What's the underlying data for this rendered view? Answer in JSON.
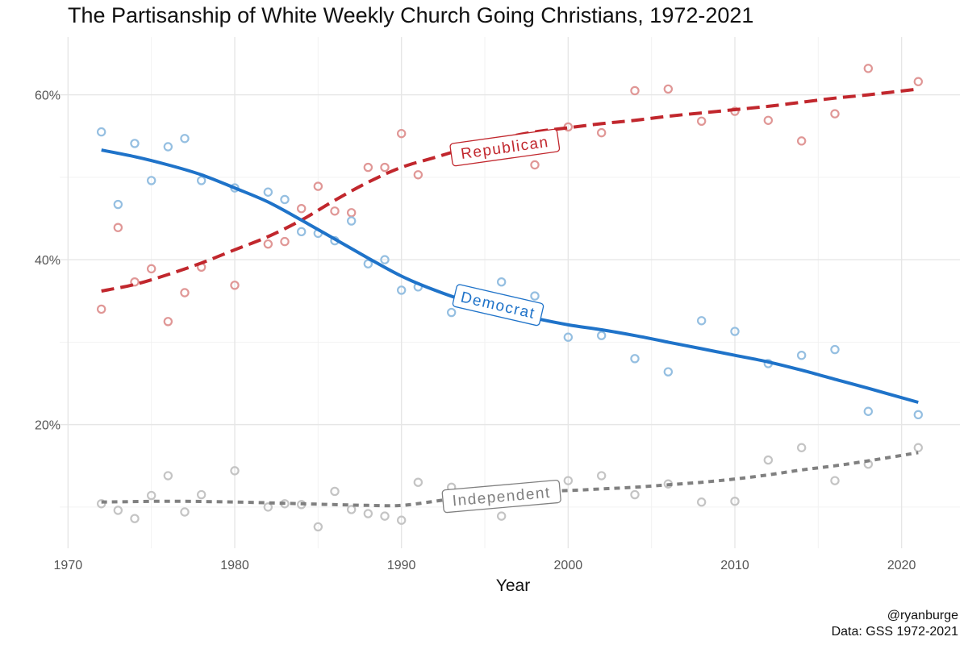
{
  "title": "The Partisanship of White Weekly Church Going Christians, 1972-2021",
  "caption": {
    "line1": "@ryanburge",
    "line2": "Data: GSS 1972-2021"
  },
  "chart_data": {
    "type": "scatter",
    "title": "The Partisanship of White Weekly Church Going Christians, 1972-2021",
    "xlabel": "Year",
    "ylabel": "",
    "xlim": [
      1969.5,
      2023.5
    ],
    "ylim": [
      5,
      67
    ],
    "x_ticks": [
      1970,
      1980,
      1990,
      2000,
      2010,
      2020
    ],
    "y_ticks": [
      20,
      40,
      60
    ],
    "y_tick_labels": [
      "20%",
      "40%",
      "60%"
    ],
    "grid": true,
    "legend": "none (direct labels on lines)",
    "series": [
      {
        "name": "Republican",
        "color": "#c1272d",
        "point_color": "#e09796",
        "line_style": "dashed",
        "points": [
          [
            1972,
            34.0
          ],
          [
            1973,
            43.9
          ],
          [
            1974,
            37.3
          ],
          [
            1975,
            38.9
          ],
          [
            1976,
            32.5
          ],
          [
            1977,
            36.0
          ],
          [
            1978,
            39.1
          ],
          [
            1980,
            36.9
          ],
          [
            1982,
            41.9
          ],
          [
            1983,
            42.2
          ],
          [
            1984,
            46.2
          ],
          [
            1985,
            48.9
          ],
          [
            1986,
            45.9
          ],
          [
            1987,
            45.7
          ],
          [
            1988,
            51.2
          ],
          [
            1989,
            51.2
          ],
          [
            1990,
            55.3
          ],
          [
            1991,
            50.3
          ],
          [
            1998,
            51.5
          ],
          [
            2000,
            56.1
          ],
          [
            2002,
            55.4
          ],
          [
            2004,
            60.5
          ],
          [
            2006,
            60.7
          ],
          [
            2008,
            56.8
          ],
          [
            2010,
            58.0
          ],
          [
            2012,
            56.9
          ],
          [
            2014,
            54.4
          ],
          [
            2016,
            57.7
          ],
          [
            2018,
            63.2
          ],
          [
            2021,
            61.6
          ]
        ],
        "trend": [
          [
            1972,
            36.2
          ],
          [
            1974,
            37.0
          ],
          [
            1976,
            38.2
          ],
          [
            1978,
            39.6
          ],
          [
            1980,
            41.2
          ],
          [
            1982,
            42.8
          ],
          [
            1984,
            44.8
          ],
          [
            1986,
            47.2
          ],
          [
            1988,
            49.4
          ],
          [
            1990,
            51.2
          ],
          [
            1992,
            52.4
          ],
          [
            1994,
            53.6
          ],
          [
            1996,
            54.7
          ],
          [
            1998,
            55.5
          ],
          [
            2000,
            56.0
          ],
          [
            2002,
            56.5
          ],
          [
            2004,
            56.9
          ],
          [
            2006,
            57.4
          ],
          [
            2008,
            57.8
          ],
          [
            2010,
            58.2
          ],
          [
            2012,
            58.6
          ],
          [
            2014,
            59.1
          ],
          [
            2016,
            59.6
          ],
          [
            2018,
            60.0
          ],
          [
            2021,
            60.7
          ]
        ]
      },
      {
        "name": "Democrat",
        "color": "#1f73c9",
        "point_color": "#95bfe1",
        "line_style": "solid",
        "points": [
          [
            1972,
            55.5
          ],
          [
            1973,
            46.7
          ],
          [
            1974,
            54.1
          ],
          [
            1975,
            49.6
          ],
          [
            1976,
            53.7
          ],
          [
            1977,
            54.7
          ],
          [
            1978,
            49.6
          ],
          [
            1980,
            48.7
          ],
          [
            1982,
            48.2
          ],
          [
            1983,
            47.3
          ],
          [
            1984,
            43.4
          ],
          [
            1985,
            43.2
          ],
          [
            1986,
            42.3
          ],
          [
            1987,
            44.7
          ],
          [
            1988,
            39.5
          ],
          [
            1989,
            40.0
          ],
          [
            1990,
            36.3
          ],
          [
            1991,
            36.7
          ],
          [
            1993,
            33.6
          ],
          [
            1996,
            37.3
          ],
          [
            1998,
            35.6
          ],
          [
            2000,
            30.6
          ],
          [
            2002,
            30.8
          ],
          [
            2004,
            28.0
          ],
          [
            2006,
            26.4
          ],
          [
            2008,
            32.6
          ],
          [
            2010,
            31.3
          ],
          [
            2012,
            27.4
          ],
          [
            2014,
            28.4
          ],
          [
            2016,
            29.1
          ],
          [
            2018,
            21.6
          ],
          [
            2021,
            21.2
          ]
        ],
        "trend": [
          [
            1972,
            53.3
          ],
          [
            1974,
            52.5
          ],
          [
            1976,
            51.5
          ],
          [
            1978,
            50.3
          ],
          [
            1980,
            48.7
          ],
          [
            1982,
            47.0
          ],
          [
            1984,
            44.8
          ],
          [
            1986,
            42.5
          ],
          [
            1988,
            40.2
          ],
          [
            1990,
            38.0
          ],
          [
            1992,
            36.3
          ],
          [
            1994,
            34.9
          ],
          [
            1996,
            33.8
          ],
          [
            1998,
            32.9
          ],
          [
            2000,
            32.1
          ],
          [
            2002,
            31.5
          ],
          [
            2004,
            30.8
          ],
          [
            2006,
            30.0
          ],
          [
            2008,
            29.2
          ],
          [
            2010,
            28.4
          ],
          [
            2012,
            27.6
          ],
          [
            2014,
            26.6
          ],
          [
            2016,
            25.5
          ],
          [
            2018,
            24.4
          ],
          [
            2021,
            22.7
          ]
        ]
      },
      {
        "name": "Independent",
        "color": "#808080",
        "point_color": "#c4c4c4",
        "line_style": "dotted",
        "points": [
          [
            1972,
            10.4
          ],
          [
            1973,
            9.6
          ],
          [
            1974,
            8.6
          ],
          [
            1975,
            11.4
          ],
          [
            1976,
            13.8
          ],
          [
            1977,
            9.4
          ],
          [
            1978,
            11.5
          ],
          [
            1980,
            14.4
          ],
          [
            1982,
            10.0
          ],
          [
            1983,
            10.4
          ],
          [
            1984,
            10.3
          ],
          [
            1985,
            7.6
          ],
          [
            1986,
            11.9
          ],
          [
            1987,
            9.7
          ],
          [
            1988,
            9.2
          ],
          [
            1989,
            8.9
          ],
          [
            1990,
            8.4
          ],
          [
            1991,
            13.0
          ],
          [
            1993,
            12.4
          ],
          [
            1996,
            8.9
          ],
          [
            2000,
            13.2
          ],
          [
            2002,
            13.8
          ],
          [
            2004,
            11.5
          ],
          [
            2006,
            12.8
          ],
          [
            2008,
            10.6
          ],
          [
            2010,
            10.7
          ],
          [
            2012,
            15.7
          ],
          [
            2014,
            17.2
          ],
          [
            2016,
            13.2
          ],
          [
            2018,
            15.2
          ],
          [
            2021,
            17.2
          ]
        ],
        "trend": [
          [
            1972,
            10.6
          ],
          [
            1976,
            10.7
          ],
          [
            1980,
            10.6
          ],
          [
            1984,
            10.4
          ],
          [
            1988,
            10.2
          ],
          [
            1990,
            10.2
          ],
          [
            1992,
            10.7
          ],
          [
            1994,
            11.3
          ],
          [
            1996,
            11.7
          ],
          [
            1998,
            11.9
          ],
          [
            2000,
            12.0
          ],
          [
            2002,
            12.2
          ],
          [
            2004,
            12.4
          ],
          [
            2006,
            12.7
          ],
          [
            2008,
            13.0
          ],
          [
            2010,
            13.4
          ],
          [
            2012,
            13.9
          ],
          [
            2014,
            14.5
          ],
          [
            2016,
            15.0
          ],
          [
            2018,
            15.6
          ],
          [
            2021,
            16.6
          ]
        ]
      }
    ],
    "line_labels": [
      {
        "text": "Republican",
        "series": "Republican",
        "x": 1996.2,
        "y": 53.6,
        "angle": -8
      },
      {
        "text": "Democrat",
        "series": "Democrat",
        "x": 1995.8,
        "y": 34.5,
        "angle": 13
      },
      {
        "text": "Independent",
        "series": "Independent",
        "x": 1996.0,
        "y": 11.3,
        "angle": -5
      }
    ]
  }
}
